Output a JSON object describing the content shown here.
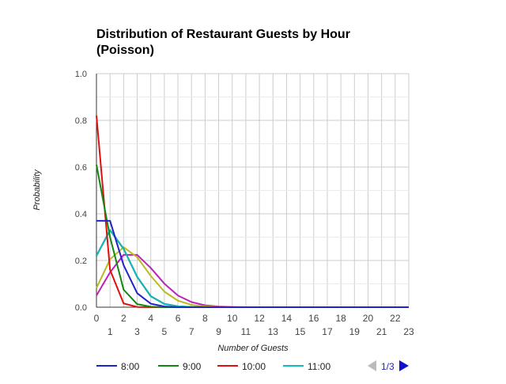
{
  "chart_data": {
    "type": "line",
    "title": "Distribution of Restaurant Guests by Hour (Poisson)",
    "title_lines": [
      "Distribution of Restaurant Guests by Hour",
      "(Poisson)"
    ],
    "xlabel": "Number of Guests",
    "ylabel": "Probability",
    "xlim": [
      0,
      23
    ],
    "ylim": [
      0,
      1
    ],
    "y_ticks": [
      "0.0",
      "0.2",
      "0.4",
      "0.6",
      "0.8",
      "1.0"
    ],
    "x_ticks": [
      "0",
      "1",
      "2",
      "3",
      "4",
      "5",
      "6",
      "7",
      "8",
      "9",
      "10",
      "11",
      "12",
      "13",
      "14",
      "15",
      "16",
      "17",
      "18",
      "19",
      "20",
      "21",
      "22",
      "23"
    ],
    "grid": true,
    "legend_position": "bottom",
    "series": [
      {
        "name": "8:00",
        "color": "#2222cc",
        "values": [
          0.37,
          0.37,
          0.18,
          0.06,
          0.015,
          0.003,
          0,
          0,
          0,
          0,
          0,
          0,
          0,
          0,
          0,
          0,
          0,
          0,
          0,
          0,
          0,
          0,
          0,
          0
        ]
      },
      {
        "name": "9:00",
        "color": "#118811",
        "values": [
          0.61,
          0.3,
          0.075,
          0.013,
          0.002,
          0,
          0,
          0,
          0,
          0,
          0,
          0,
          0,
          0,
          0,
          0,
          0,
          0,
          0,
          0,
          0,
          0,
          0,
          0
        ]
      },
      {
        "name": "10:00",
        "color": "#dd1111",
        "values": [
          0.82,
          0.16,
          0.016,
          0.001,
          0,
          0,
          0,
          0,
          0,
          0,
          0,
          0,
          0,
          0,
          0,
          0,
          0,
          0,
          0,
          0,
          0,
          0,
          0,
          0
        ]
      },
      {
        "name": "11:00",
        "color": "#11bbbb",
        "values": [
          0.22,
          0.33,
          0.25,
          0.13,
          0.047,
          0.014,
          0.004,
          0.001,
          0,
          0,
          0,
          0,
          0,
          0,
          0,
          0,
          0,
          0,
          0,
          0,
          0,
          0,
          0,
          0
        ]
      },
      {
        "name": "",
        "color": "#000000",
        "values": [
          0.22,
          0.33,
          0.25,
          0.13,
          0.047,
          0.014,
          0.004,
          0.001,
          0,
          0,
          0,
          0,
          0,
          0,
          0,
          0,
          0,
          0,
          0,
          0,
          0,
          0,
          0,
          0
        ]
      },
      {
        "name": "",
        "color": "#bbbb22",
        "values": [
          0.082,
          0.205,
          0.257,
          0.214,
          0.134,
          0.067,
          0.028,
          0.01,
          0.003,
          0.001,
          0,
          0,
          0,
          0,
          0,
          0,
          0,
          0,
          0,
          0,
          0,
          0,
          0,
          0
        ]
      },
      {
        "name": "",
        "color": "#bb22bb",
        "values": [
          0.05,
          0.149,
          0.224,
          0.224,
          0.168,
          0.101,
          0.05,
          0.022,
          0.008,
          0.003,
          0.001,
          0,
          0,
          0,
          0,
          0,
          0,
          0,
          0,
          0,
          0,
          0,
          0,
          0
        ]
      }
    ],
    "legend_visible": [
      "8:00",
      "9:00",
      "10:00",
      "11:00"
    ]
  },
  "pager": {
    "label": "1/3",
    "prev_icon": "triangle-left-icon",
    "next_icon": "triangle-right-icon",
    "prev_color": "#bbbbbb",
    "next_color": "#1111cc"
  }
}
